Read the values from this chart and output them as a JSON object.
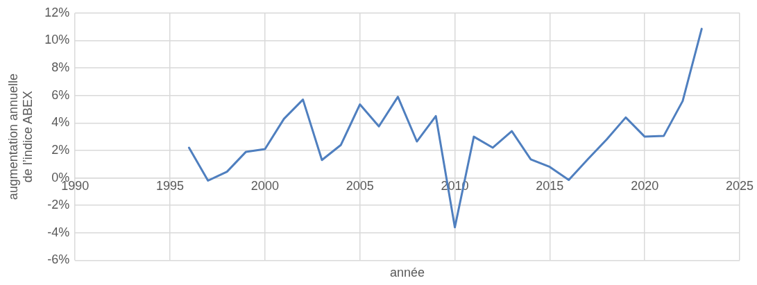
{
  "chart_data": {
    "type": "line",
    "xlabel": "année",
    "ylabel": "augmentation annuelle de l’indice ABEX",
    "x": [
      1996,
      1997,
      1998,
      1999,
      2000,
      2001,
      2002,
      2003,
      2004,
      2005,
      2006,
      2007,
      2008,
      2009,
      2010,
      2011,
      2012,
      2013,
      2014,
      2015,
      2016,
      2017,
      2018,
      2019,
      2020,
      2021,
      2022,
      2023
    ],
    "series": [
      {
        "color": "#4f7fbf",
        "values": [
          2.2,
          -0.2,
          0.45,
          1.9,
          2.1,
          4.3,
          5.7,
          1.3,
          2.4,
          5.35,
          3.75,
          5.9,
          2.65,
          4.5,
          -3.6,
          3.0,
          2.2,
          3.4,
          1.35,
          0.8,
          -0.15,
          1.35,
          2.8,
          4.4,
          3.0,
          3.05,
          5.6,
          10.85
        ]
      }
    ],
    "xlim": [
      1990,
      2025
    ],
    "xticks": [
      1990,
      1995,
      2000,
      2005,
      2010,
      2015,
      2020,
      2025
    ],
    "ylim": [
      -6,
      12
    ],
    "yticks": [
      {
        "value": -6,
        "label": "-6%"
      },
      {
        "value": -4,
        "label": "-4%"
      },
      {
        "value": -2,
        "label": "-2%"
      },
      {
        "value": 0,
        "label": "0%"
      },
      {
        "value": 2,
        "label": "2%"
      },
      {
        "value": 4,
        "label": "4%"
      },
      {
        "value": 6,
        "label": "6%"
      },
      {
        "value": 8,
        "label": "8%"
      },
      {
        "value": 10,
        "label": "10%"
      },
      {
        "value": 12,
        "label": "12%"
      }
    ],
    "grid": true,
    "legend": false,
    "marker": "none",
    "line_style": "solid"
  }
}
